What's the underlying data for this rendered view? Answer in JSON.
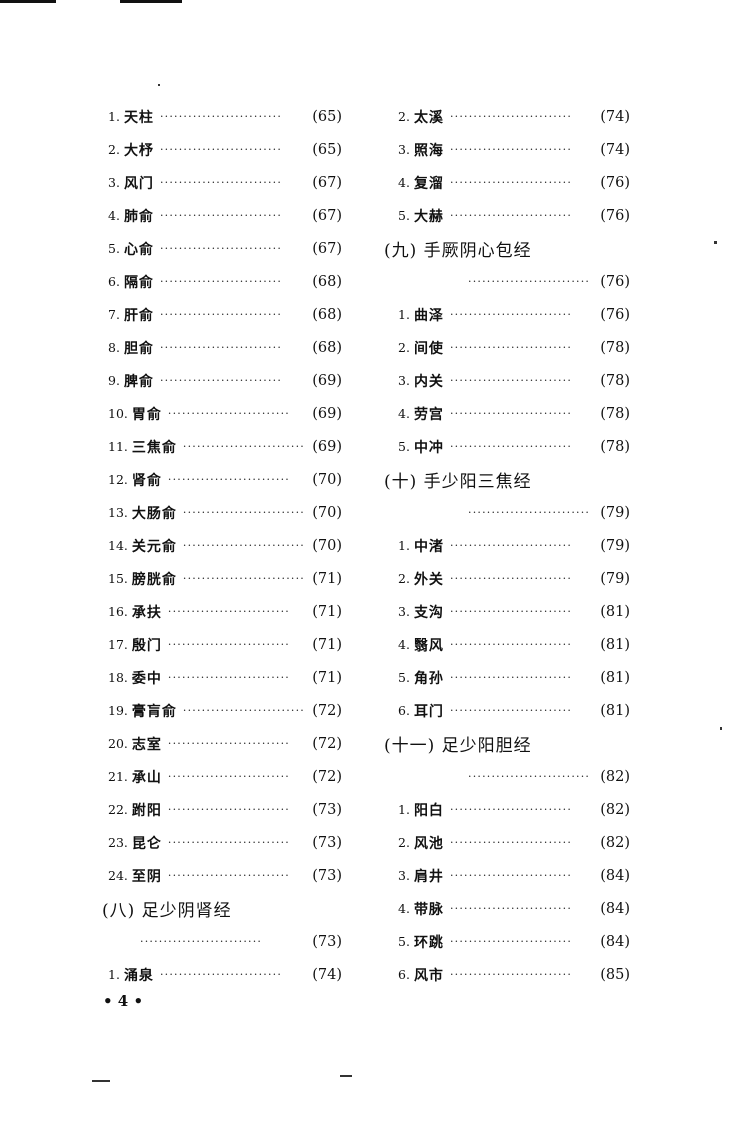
{
  "left_column": [
    {
      "type": "entry",
      "num": "1.",
      "name": "天柱",
      "page": "(65)"
    },
    {
      "type": "entry",
      "num": "2.",
      "name": "大杼",
      "page": "(65)"
    },
    {
      "type": "entry",
      "num": "3.",
      "name": "风门",
      "page": "(67)"
    },
    {
      "type": "entry",
      "num": "4.",
      "name": "肺俞",
      "page": "(67)"
    },
    {
      "type": "entry",
      "num": "5.",
      "name": "心俞",
      "page": "(67)"
    },
    {
      "type": "entry",
      "num": "6.",
      "name": "隔俞",
      "page": "(68)"
    },
    {
      "type": "entry",
      "num": "7.",
      "name": "肝俞",
      "page": "(68)"
    },
    {
      "type": "entry",
      "num": "8.",
      "name": "胆俞",
      "page": "(68)"
    },
    {
      "type": "entry",
      "num": "9.",
      "name": "脾俞",
      "page": "(69)"
    },
    {
      "type": "entry",
      "num": "10.",
      "name": "胃俞",
      "page": "(69)"
    },
    {
      "type": "entry",
      "num": "11.",
      "name": "三焦俞",
      "page": "(69)"
    },
    {
      "type": "entry",
      "num": "12.",
      "name": "肾俞",
      "page": "(70)"
    },
    {
      "type": "entry",
      "num": "13.",
      "name": "大肠俞",
      "page": "(70)"
    },
    {
      "type": "entry",
      "num": "14.",
      "name": "关元俞",
      "page": "(70)"
    },
    {
      "type": "entry",
      "num": "15.",
      "name": "膀胱俞",
      "page": "(71)"
    },
    {
      "type": "entry",
      "num": "16.",
      "name": "承扶",
      "page": "(71)"
    },
    {
      "type": "entry",
      "num": "17.",
      "name": "殷门",
      "page": "(71)"
    },
    {
      "type": "entry",
      "num": "18.",
      "name": "委中",
      "page": "(71)"
    },
    {
      "type": "entry",
      "num": "19.",
      "name": "膏肓俞",
      "page": "(72)"
    },
    {
      "type": "entry",
      "num": "20.",
      "name": "志室",
      "page": "(72)"
    },
    {
      "type": "entry",
      "num": "21.",
      "name": "承山",
      "page": "(72)"
    },
    {
      "type": "entry",
      "num": "22.",
      "name": "跗阳",
      "page": "(73)"
    },
    {
      "type": "entry",
      "num": "23.",
      "name": "昆仑",
      "page": "(73)"
    },
    {
      "type": "entry",
      "num": "24.",
      "name": "至阴",
      "page": "(73)"
    },
    {
      "type": "heading",
      "name": "(八) 足少阴肾经"
    },
    {
      "type": "dotsonly",
      "page": "(73)"
    },
    {
      "type": "entry",
      "num": "1.",
      "name": "涌泉",
      "page": "(74)"
    }
  ],
  "right_column": [
    {
      "type": "entry",
      "num": "2.",
      "name": "太溪",
      "page": "(74)"
    },
    {
      "type": "entry",
      "num": "3.",
      "name": "照海",
      "page": "(74)"
    },
    {
      "type": "entry",
      "num": "4.",
      "name": "复溜",
      "page": "(76)"
    },
    {
      "type": "entry",
      "num": "5.",
      "name": "大赫",
      "page": "(76)"
    },
    {
      "type": "heading",
      "name": "(九) 手厥阴心包经"
    },
    {
      "type": "dotsonly",
      "page": "(76)"
    },
    {
      "type": "entry",
      "num": "1.",
      "name": "曲泽",
      "page": "(76)"
    },
    {
      "type": "entry",
      "num": "2.",
      "name": "间使",
      "page": "(78)"
    },
    {
      "type": "entry",
      "num": "3.",
      "name": "内关",
      "page": "(78)"
    },
    {
      "type": "entry",
      "num": "4.",
      "name": "劳宫",
      "page": "(78)"
    },
    {
      "type": "entry",
      "num": "5.",
      "name": "中冲",
      "page": "(78)"
    },
    {
      "type": "heading",
      "name": "(十) 手少阳三焦经"
    },
    {
      "type": "dotsonly",
      "page": "(79)"
    },
    {
      "type": "entry",
      "num": "1.",
      "name": "中渚",
      "page": "(79)"
    },
    {
      "type": "entry",
      "num": "2.",
      "name": "外关",
      "page": "(79)"
    },
    {
      "type": "entry",
      "num": "3.",
      "name": "支沟",
      "page": "(81)"
    },
    {
      "type": "entry",
      "num": "4.",
      "name": "翳风",
      "page": "(81)"
    },
    {
      "type": "entry",
      "num": "5.",
      "name": "角孙",
      "page": "(81)"
    },
    {
      "type": "entry",
      "num": "6.",
      "name": "耳门",
      "page": "(81)"
    },
    {
      "type": "heading",
      "name": "(十一) 足少阳胆经"
    },
    {
      "type": "dotsonly",
      "page": "(82)"
    },
    {
      "type": "entry",
      "num": "1.",
      "name": "阳白",
      "page": "(82)"
    },
    {
      "type": "entry",
      "num": "2.",
      "name": "风池",
      "page": "(82)"
    },
    {
      "type": "entry",
      "num": "3.",
      "name": "肩井",
      "page": "(84)"
    },
    {
      "type": "entry",
      "num": "4.",
      "name": "带脉",
      "page": "(84)"
    },
    {
      "type": "entry",
      "num": "5.",
      "name": "环跳",
      "page": "(84)"
    },
    {
      "type": "entry",
      "num": "6.",
      "name": "风市",
      "page": "(85)"
    }
  ],
  "folio": "• 4 •",
  "leader": "··························"
}
